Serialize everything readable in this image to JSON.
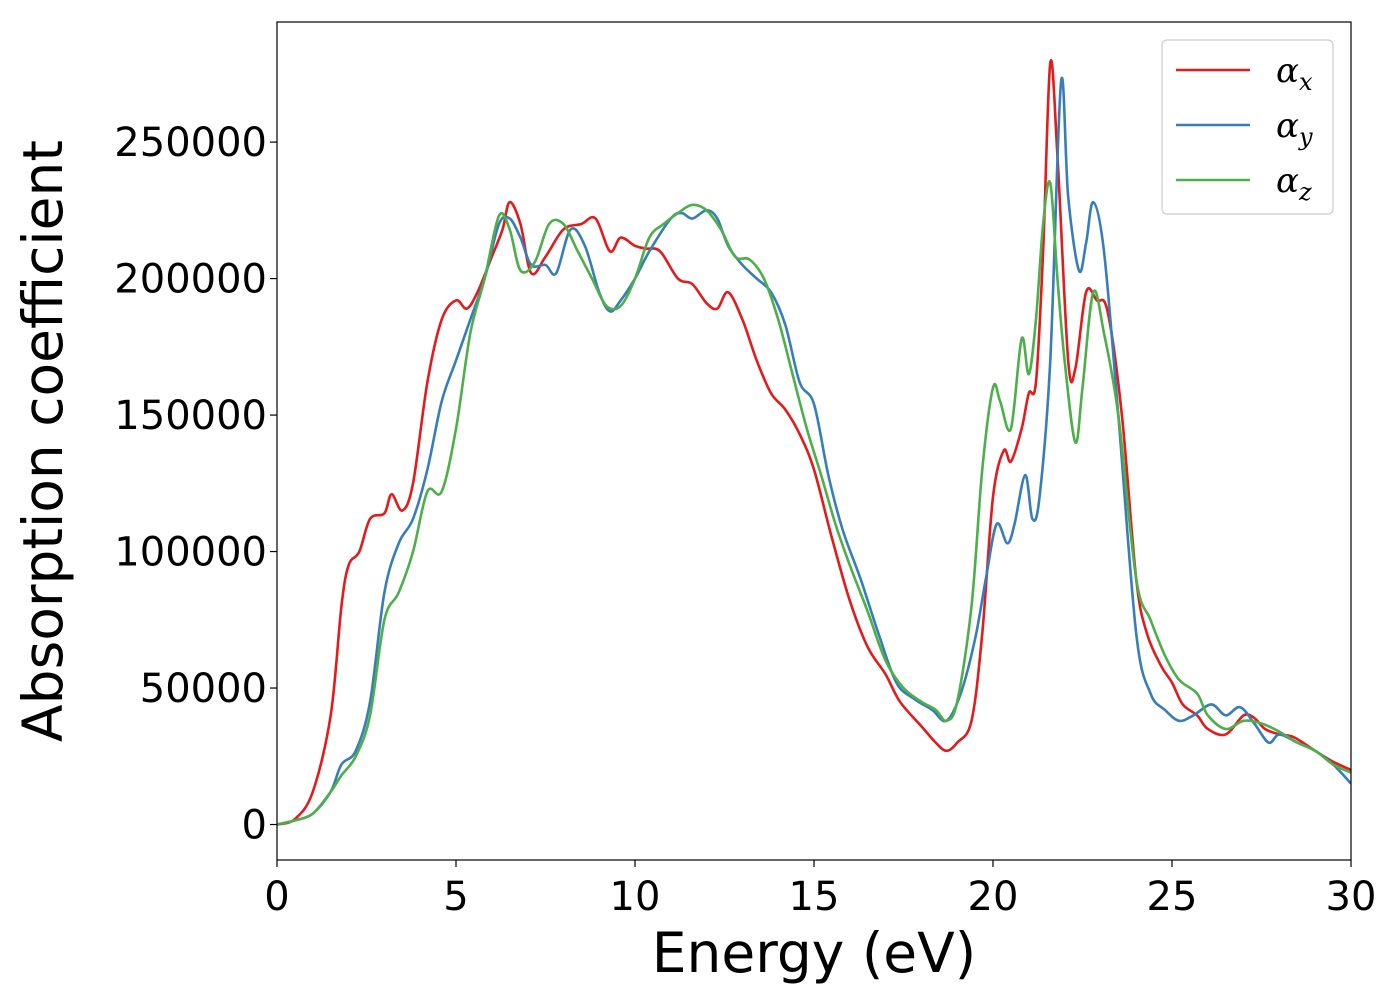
{
  "chart_data": {
    "type": "line",
    "xlabel": "Energy (eV)",
    "ylabel": "Absorption coefficient",
    "xlim": [
      0,
      30
    ],
    "ylim": [
      -13000,
      294000
    ],
    "xticks": [
      0,
      5,
      10,
      15,
      20,
      25,
      30
    ],
    "yticks": [
      0,
      50000,
      100000,
      150000,
      200000,
      250000
    ],
    "grid": false,
    "legend_position": "top-right",
    "series": [
      {
        "name": "α_x",
        "label_main": "α",
        "label_sub": "x",
        "color": "#e41a1c",
        "points": [
          [
            0,
            0
          ],
          [
            0.5,
            2000
          ],
          [
            1,
            12000
          ],
          [
            1.5,
            40000
          ],
          [
            1.8,
            80000
          ],
          [
            2,
            95000
          ],
          [
            2.3,
            100000
          ],
          [
            2.6,
            112000
          ],
          [
            3,
            114000
          ],
          [
            3.2,
            121000
          ],
          [
            3.5,
            115000
          ],
          [
            3.8,
            125000
          ],
          [
            4.2,
            162000
          ],
          [
            4.6,
            185000
          ],
          [
            5,
            192000
          ],
          [
            5.3,
            189000
          ],
          [
            5.6,
            195000
          ],
          [
            6,
            208000
          ],
          [
            6.3,
            218000
          ],
          [
            6.5,
            228000
          ],
          [
            6.8,
            220000
          ],
          [
            7.1,
            202000
          ],
          [
            7.5,
            208000
          ],
          [
            8,
            218000
          ],
          [
            8.5,
            220000
          ],
          [
            8.9,
            222000
          ],
          [
            9.3,
            210000
          ],
          [
            9.6,
            215000
          ],
          [
            10,
            212000
          ],
          [
            10.3,
            211000
          ],
          [
            10.7,
            210000
          ],
          [
            11.2,
            200000
          ],
          [
            11.6,
            198000
          ],
          [
            12,
            191000
          ],
          [
            12.3,
            189000
          ],
          [
            12.6,
            195000
          ],
          [
            13,
            185000
          ],
          [
            13.4,
            170000
          ],
          [
            13.8,
            158000
          ],
          [
            14.2,
            152000
          ],
          [
            14.6,
            143000
          ],
          [
            15,
            130000
          ],
          [
            15.5,
            105000
          ],
          [
            16,
            82000
          ],
          [
            16.5,
            65000
          ],
          [
            17,
            55000
          ],
          [
            17.4,
            45000
          ],
          [
            18,
            36000
          ],
          [
            18.4,
            30000
          ],
          [
            18.7,
            27000
          ],
          [
            19,
            30000
          ],
          [
            19.4,
            38000
          ],
          [
            19.7,
            70000
          ],
          [
            20,
            120000
          ],
          [
            20.3,
            137000
          ],
          [
            20.5,
            133000
          ],
          [
            20.8,
            145000
          ],
          [
            21,
            158000
          ],
          [
            21.2,
            162000
          ],
          [
            21.4,
            210000
          ],
          [
            21.6,
            279000
          ],
          [
            21.8,
            245000
          ],
          [
            22.1,
            170000
          ],
          [
            22.3,
            167000
          ],
          [
            22.6,
            195000
          ],
          [
            22.9,
            192000
          ],
          [
            23.2,
            188000
          ],
          [
            23.6,
            150000
          ],
          [
            24,
            90000
          ],
          [
            24.3,
            70000
          ],
          [
            24.7,
            58000
          ],
          [
            25,
            52000
          ],
          [
            25.3,
            44000
          ],
          [
            25.7,
            40000
          ],
          [
            26,
            35000
          ],
          [
            26.5,
            33000
          ],
          [
            27,
            40000
          ],
          [
            27.3,
            39000
          ],
          [
            27.6,
            35000
          ],
          [
            28,
            33000
          ],
          [
            28.4,
            32000
          ],
          [
            29,
            27000
          ],
          [
            29.5,
            23000
          ],
          [
            30,
            20000
          ]
        ]
      },
      {
        "name": "α_y",
        "label_main": "α",
        "label_sub": "y",
        "color": "#377eb8",
        "points": [
          [
            0,
            0
          ],
          [
            0.5,
            1500
          ],
          [
            1,
            4000
          ],
          [
            1.5,
            12000
          ],
          [
            1.8,
            22000
          ],
          [
            2.2,
            27000
          ],
          [
            2.6,
            45000
          ],
          [
            3,
            85000
          ],
          [
            3.4,
            103000
          ],
          [
            3.8,
            112000
          ],
          [
            4.2,
            130000
          ],
          [
            4.6,
            155000
          ],
          [
            5,
            170000
          ],
          [
            5.4,
            185000
          ],
          [
            5.8,
            200000
          ],
          [
            6.2,
            220000
          ],
          [
            6.5,
            222000
          ],
          [
            6.8,
            215000
          ],
          [
            7.1,
            205000
          ],
          [
            7.5,
            205000
          ],
          [
            7.8,
            202000
          ],
          [
            8.2,
            218000
          ],
          [
            8.6,
            212000
          ],
          [
            9,
            195000
          ],
          [
            9.3,
            188000
          ],
          [
            9.6,
            192000
          ],
          [
            10,
            200000
          ],
          [
            10.4,
            210000
          ],
          [
            11,
            222000
          ],
          [
            11.3,
            224000
          ],
          [
            11.6,
            222000
          ],
          [
            12,
            225000
          ],
          [
            12.3,
            222000
          ],
          [
            12.6,
            212000
          ],
          [
            13,
            205000
          ],
          [
            13.4,
            200000
          ],
          [
            13.8,
            195000
          ],
          [
            14.2,
            183000
          ],
          [
            14.6,
            162000
          ],
          [
            15,
            154000
          ],
          [
            15.4,
            128000
          ],
          [
            15.8,
            108000
          ],
          [
            16.3,
            90000
          ],
          [
            16.8,
            70000
          ],
          [
            17.3,
            52000
          ],
          [
            17.8,
            46000
          ],
          [
            18.3,
            42000
          ],
          [
            18.7,
            38000
          ],
          [
            19.1,
            48000
          ],
          [
            19.5,
            68000
          ],
          [
            19.8,
            90000
          ],
          [
            20.1,
            110000
          ],
          [
            20.4,
            103000
          ],
          [
            20.6,
            110000
          ],
          [
            20.9,
            128000
          ],
          [
            21.1,
            112000
          ],
          [
            21.3,
            120000
          ],
          [
            21.6,
            170000
          ],
          [
            21.9,
            272000
          ],
          [
            22.1,
            230000
          ],
          [
            22.4,
            203000
          ],
          [
            22.6,
            213000
          ],
          [
            22.8,
            228000
          ],
          [
            23.1,
            210000
          ],
          [
            23.5,
            150000
          ],
          [
            24,
            70000
          ],
          [
            24.4,
            48000
          ],
          [
            24.8,
            42000
          ],
          [
            25.2,
            38000
          ],
          [
            25.6,
            40000
          ],
          [
            26.1,
            44000
          ],
          [
            26.5,
            40000
          ],
          [
            26.9,
            43000
          ],
          [
            27.3,
            37000
          ],
          [
            27.7,
            30000
          ],
          [
            28,
            33000
          ],
          [
            28.5,
            30000
          ],
          [
            29,
            27000
          ],
          [
            29.5,
            22000
          ],
          [
            30,
            15000
          ]
        ]
      },
      {
        "name": "α_z",
        "label_main": "α",
        "label_sub": "z",
        "color": "#4daf4a",
        "points": [
          [
            0,
            0
          ],
          [
            0.5,
            1500
          ],
          [
            1,
            4000
          ],
          [
            1.5,
            12000
          ],
          [
            1.8,
            18000
          ],
          [
            2.2,
            25000
          ],
          [
            2.6,
            40000
          ],
          [
            3,
            75000
          ],
          [
            3.4,
            85000
          ],
          [
            3.8,
            100000
          ],
          [
            4.2,
            122000
          ],
          [
            4.6,
            122000
          ],
          [
            5,
            145000
          ],
          [
            5.4,
            180000
          ],
          [
            5.8,
            200000
          ],
          [
            6.2,
            223000
          ],
          [
            6.5,
            218000
          ],
          [
            6.8,
            203000
          ],
          [
            7.2,
            206000
          ],
          [
            7.6,
            220000
          ],
          [
            8,
            220000
          ],
          [
            8.4,
            210000
          ],
          [
            8.8,
            200000
          ],
          [
            9.2,
            190000
          ],
          [
            9.6,
            190000
          ],
          [
            10,
            200000
          ],
          [
            10.4,
            215000
          ],
          [
            10.8,
            220000
          ],
          [
            11.2,
            224000
          ],
          [
            11.6,
            227000
          ],
          [
            12,
            225000
          ],
          [
            12.4,
            218000
          ],
          [
            12.8,
            208000
          ],
          [
            13.2,
            207000
          ],
          [
            13.6,
            200000
          ],
          [
            14,
            185000
          ],
          [
            14.4,
            165000
          ],
          [
            14.8,
            145000
          ],
          [
            15.2,
            128000
          ],
          [
            15.6,
            110000
          ],
          [
            16,
            95000
          ],
          [
            16.5,
            78000
          ],
          [
            17,
            60000
          ],
          [
            17.5,
            50000
          ],
          [
            18,
            45000
          ],
          [
            18.4,
            42000
          ],
          [
            18.7,
            38000
          ],
          [
            19,
            45000
          ],
          [
            19.4,
            80000
          ],
          [
            19.7,
            130000
          ],
          [
            20,
            160000
          ],
          [
            20.2,
            155000
          ],
          [
            20.5,
            145000
          ],
          [
            20.8,
            178000
          ],
          [
            21,
            165000
          ],
          [
            21.2,
            185000
          ],
          [
            21.4,
            220000
          ],
          [
            21.6,
            235000
          ],
          [
            21.8,
            200000
          ],
          [
            22,
            170000
          ],
          [
            22.3,
            140000
          ],
          [
            22.5,
            160000
          ],
          [
            22.8,
            195000
          ],
          [
            23.1,
            180000
          ],
          [
            23.5,
            150000
          ],
          [
            24,
            90000
          ],
          [
            24.4,
            75000
          ],
          [
            24.8,
            62000
          ],
          [
            25.2,
            53000
          ],
          [
            25.7,
            48000
          ],
          [
            26,
            40000
          ],
          [
            26.5,
            35000
          ],
          [
            27,
            38000
          ],
          [
            27.5,
            37000
          ],
          [
            28,
            34000
          ],
          [
            28.5,
            30000
          ],
          [
            29,
            27000
          ],
          [
            29.5,
            22000
          ],
          [
            30,
            19000
          ]
        ]
      }
    ]
  }
}
